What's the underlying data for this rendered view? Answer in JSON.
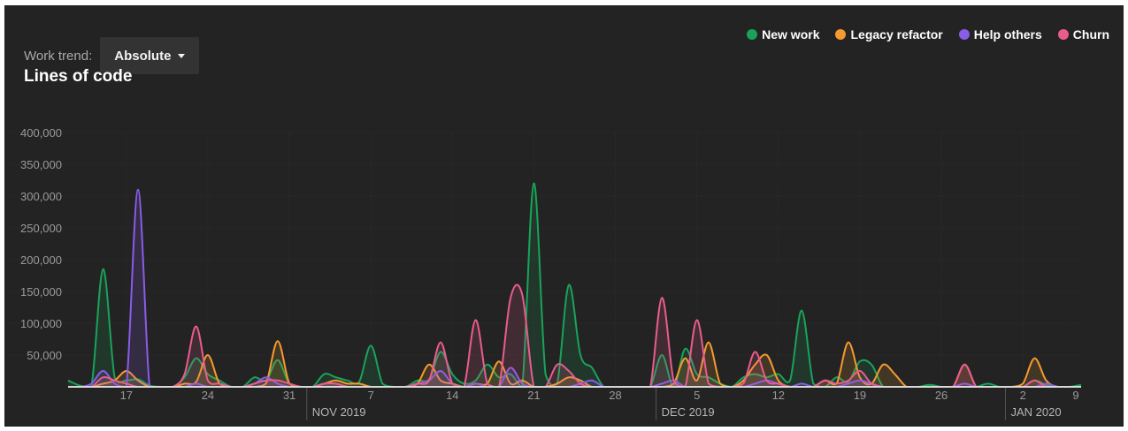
{
  "header": {
    "trend_label": "Work trend:",
    "trend_value": "Absolute",
    "chart_title": "Lines of code"
  },
  "legend": [
    {
      "label": "New work",
      "color": "#1aa25a"
    },
    {
      "label": "Legacy refactor",
      "color": "#f39a30"
    },
    {
      "label": "Help others",
      "color": "#8a5ce8"
    },
    {
      "label": "Churn",
      "color": "#e85c8e"
    }
  ],
  "chart_data": {
    "type": "area",
    "title": "Lines of code",
    "ylim": [
      0,
      400000
    ],
    "yticks": [
      50000,
      100000,
      150000,
      200000,
      250000,
      300000,
      350000,
      400000
    ],
    "ytick_labels": [
      "50,000",
      "100,000",
      "150,000",
      "200,000",
      "250,000",
      "300,000",
      "350,000",
      "400,000"
    ],
    "xlim": [
      12,
      99
    ],
    "xticks": [
      17,
      24,
      31,
      38,
      45,
      52,
      59,
      66,
      73,
      80,
      87,
      94,
      101
    ],
    "xtick_labels": [
      "17",
      "24",
      "31",
      "7",
      "14",
      "21",
      "28",
      "5",
      "12",
      "19",
      "26",
      "2",
      "9"
    ],
    "month_labels": [
      {
        "x": 32.5,
        "label": "NOV 2019"
      },
      {
        "x": 62.5,
        "label": "DEC 2019"
      },
      {
        "x": 92.5,
        "label": "JAN 2020"
      }
    ],
    "grid": true,
    "legend_position": "top-right",
    "series": [
      {
        "name": "New work",
        "color": "#1aa25a",
        "values": [
          10000,
          2000,
          0,
          185000,
          15000,
          10000,
          12000,
          2000,
          0,
          0,
          15000,
          45000,
          20000,
          10000,
          0,
          0,
          15000,
          10000,
          42000,
          5000,
          0,
          0,
          20000,
          15000,
          10000,
          8000,
          65000,
          5000,
          0,
          0,
          10000,
          12000,
          55000,
          20000,
          5000,
          10000,
          35000,
          15000,
          20000,
          0,
          320000,
          20000,
          5000,
          160000,
          50000,
          30000,
          0,
          0,
          0,
          0,
          0,
          50000,
          0,
          60000,
          20000,
          15000,
          5000,
          0,
          15000,
          20000,
          15000,
          20000,
          10000,
          120000,
          5000,
          0,
          15000,
          8000,
          40000,
          35000,
          0,
          0,
          0,
          0,
          3000,
          0,
          0,
          0,
          0,
          5000,
          0,
          0,
          0,
          10000,
          3000,
          0,
          0,
          3000
        ]
      },
      {
        "name": "Legacy refactor",
        "color": "#f39a30",
        "values": [
          0,
          0,
          0,
          5000,
          10000,
          25000,
          10000,
          0,
          0,
          0,
          5000,
          8000,
          50000,
          5000,
          0,
          0,
          0,
          5000,
          72000,
          5000,
          0,
          0,
          5000,
          10000,
          5000,
          5000,
          0,
          0,
          0,
          0,
          5000,
          35000,
          10000,
          5000,
          0,
          5000,
          5000,
          40000,
          5000,
          10000,
          0,
          0,
          5000,
          15000,
          10000,
          0,
          0,
          0,
          0,
          0,
          0,
          0,
          5000,
          45000,
          10000,
          70000,
          5000,
          0,
          10000,
          35000,
          50000,
          10000,
          0,
          0,
          0,
          10000,
          5000,
          70000,
          15000,
          5000,
          35000,
          20000,
          0,
          0,
          0,
          0,
          0,
          35000,
          0,
          0,
          0,
          0,
          5000,
          45000,
          10000,
          0,
          0,
          0
        ]
      },
      {
        "name": "Help others",
        "color": "#8a5ce8",
        "values": [
          0,
          0,
          5000,
          25000,
          5000,
          0,
          310000,
          0,
          0,
          0,
          0,
          5000,
          0,
          0,
          0,
          0,
          5000,
          15000,
          5000,
          0,
          0,
          0,
          5000,
          5000,
          0,
          0,
          0,
          0,
          0,
          0,
          5000,
          10000,
          25000,
          5000,
          0,
          5000,
          0,
          0,
          30000,
          5000,
          0,
          0,
          0,
          0,
          5000,
          10000,
          0,
          0,
          0,
          0,
          0,
          5000,
          10000,
          0,
          0,
          0,
          0,
          0,
          0,
          5000,
          10000,
          5000,
          0,
          5000,
          0,
          0,
          0,
          5000,
          10000,
          5000,
          0,
          0,
          0,
          0,
          0,
          0,
          0,
          5000,
          0,
          0,
          0,
          0,
          0,
          0,
          5000,
          0,
          0,
          0
        ]
      },
      {
        "name": "Churn",
        "color": "#e85c8e",
        "values": [
          0,
          0,
          0,
          15000,
          10000,
          5000,
          0,
          0,
          0,
          0,
          20000,
          95000,
          10000,
          5000,
          0,
          0,
          5000,
          10000,
          10000,
          5000,
          0,
          0,
          5000,
          5000,
          0,
          0,
          0,
          0,
          0,
          0,
          5000,
          10000,
          70000,
          5000,
          0,
          105000,
          5000,
          0,
          140000,
          145000,
          0,
          0,
          35000,
          25000,
          5000,
          0,
          0,
          0,
          0,
          0,
          0,
          140000,
          10000,
          0,
          105000,
          5000,
          0,
          0,
          5000,
          55000,
          10000,
          5000,
          0,
          0,
          0,
          10000,
          5000,
          10000,
          25000,
          5000,
          0,
          0,
          0,
          0,
          0,
          0,
          0,
          35000,
          0,
          0,
          0,
          0,
          0,
          10000,
          0,
          0,
          0,
          0
        ]
      }
    ]
  }
}
